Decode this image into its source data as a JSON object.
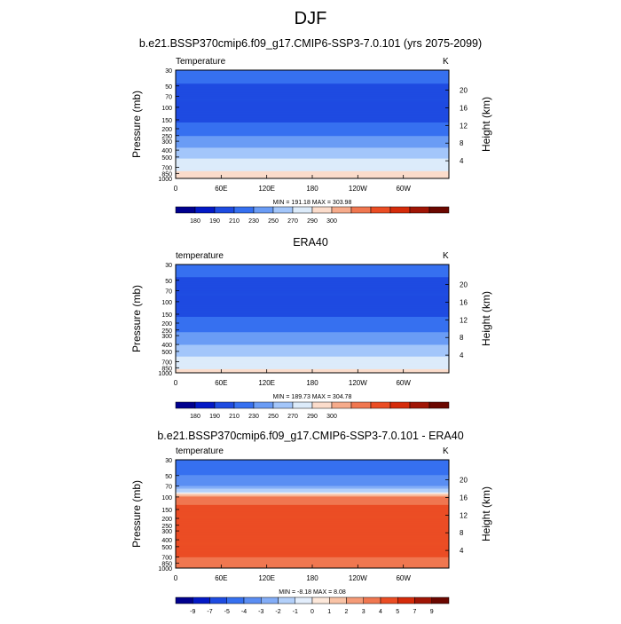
{
  "main_title": "DJF",
  "chart_data": [
    {
      "type": "heatmap",
      "title": "b.e21.BSSP370cmip6.f09_g17.CMIP6-SSP3-7.0.101 (yrs 2075-2099)",
      "field": "Temperature",
      "units": "K",
      "xlabel": "",
      "ylabel": "Pressure (mb)",
      "y2label": "Height (km)",
      "x_ticks": [
        "0",
        "60E",
        "120E",
        "180",
        "120W",
        "60W"
      ],
      "y_ticks": [
        30,
        50,
        70,
        100,
        150,
        200,
        250,
        300,
        400,
        500,
        700,
        850,
        1000
      ],
      "y2_ticks": [
        4,
        8,
        12,
        16,
        20
      ],
      "ylim": [
        1000,
        30
      ],
      "stats": "MIN = 191.18  MAX = 303.98",
      "levels": [
        180,
        190,
        210,
        230,
        250,
        270,
        290,
        300
      ],
      "colorbar_labels": [
        "180",
        "190",
        "210",
        "230",
        "250",
        "270",
        "290",
        "300"
      ],
      "profile": [
        {
          "p": 30,
          "v": 217
        },
        {
          "p": 50,
          "v": 209
        },
        {
          "p": 70,
          "v": 203
        },
        {
          "p": 100,
          "v": 200
        },
        {
          "p": 150,
          "v": 207
        },
        {
          "p": 200,
          "v": 218
        },
        {
          "p": 250,
          "v": 229
        },
        {
          "p": 300,
          "v": 239
        },
        {
          "p": 400,
          "v": 255
        },
        {
          "p": 500,
          "v": 267
        },
        {
          "p": 700,
          "v": 283
        },
        {
          "p": 850,
          "v": 293
        },
        {
          "p": 1000,
          "v": 300
        }
      ]
    },
    {
      "type": "heatmap",
      "title": "ERA40",
      "field": "temperature",
      "units": "K",
      "xlabel": "",
      "ylabel": "Pressure (mb)",
      "y2label": "Height (km)",
      "x_ticks": [
        "0",
        "60E",
        "120E",
        "180",
        "120W",
        "60W"
      ],
      "y_ticks": [
        30,
        50,
        70,
        100,
        150,
        200,
        250,
        300,
        400,
        500,
        700,
        850,
        1000
      ],
      "y2_ticks": [
        4,
        8,
        12,
        16,
        20
      ],
      "ylim": [
        1000,
        30
      ],
      "stats": "MIN = 189.73  MAX = 304.78",
      "levels": [
        180,
        190,
        210,
        230,
        250,
        270,
        290,
        300
      ],
      "colorbar_labels": [
        "180",
        "190",
        "210",
        "230",
        "250",
        "270",
        "290",
        "300"
      ],
      "profile": [
        {
          "p": 30,
          "v": 214
        },
        {
          "p": 50,
          "v": 209
        },
        {
          "p": 70,
          "v": 205
        },
        {
          "p": 100,
          "v": 203
        },
        {
          "p": 150,
          "v": 208
        },
        {
          "p": 200,
          "v": 216
        },
        {
          "p": 250,
          "v": 226
        },
        {
          "p": 300,
          "v": 235
        },
        {
          "p": 400,
          "v": 250
        },
        {
          "p": 500,
          "v": 262
        },
        {
          "p": 700,
          "v": 278
        },
        {
          "p": 850,
          "v": 288
        },
        {
          "p": 1000,
          "v": 294
        }
      ]
    },
    {
      "type": "heatmap",
      "title": "b.e21.BSSP370cmip6.f09_g17.CMIP6-SSP3-7.0.101 - ERA40",
      "field": "temperature",
      "units": "K",
      "xlabel": "",
      "ylabel": "Pressure (mb)",
      "y2label": "Height (km)",
      "x_ticks": [
        "0",
        "60E",
        "120E",
        "180",
        "120W",
        "60W"
      ],
      "y_ticks": [
        30,
        50,
        70,
        100,
        150,
        200,
        250,
        300,
        400,
        500,
        700,
        850,
        1000
      ],
      "y2_ticks": [
        4,
        8,
        12,
        16,
        20
      ],
      "ylim": [
        1000,
        30
      ],
      "stats": "MIN = -8.18  MAX =  8.08",
      "levels": [
        -9,
        -7,
        -5,
        -4,
        -3,
        -2,
        -1,
        0,
        1,
        2,
        3,
        4,
        5,
        7,
        9
      ],
      "colorbar_labels": [
        "-9",
        "-7",
        "-5",
        "-4",
        "-3",
        "-2",
        "-1",
        "0",
        "1",
        "2",
        "3",
        "4",
        "5",
        "7",
        "9"
      ],
      "profile": [
        {
          "p": 30,
          "v": -5
        },
        {
          "p": 50,
          "v": -4
        },
        {
          "p": 70,
          "v": -3
        },
        {
          "p": 85,
          "v": -1
        },
        {
          "p": 100,
          "v": 3
        },
        {
          "p": 150,
          "v": 4.5
        },
        {
          "p": 300,
          "v": 5
        },
        {
          "p": 500,
          "v": 4.5
        },
        {
          "p": 700,
          "v": 4
        },
        {
          "p": 850,
          "v": 3
        },
        {
          "p": 1000,
          "v": 4
        }
      ]
    }
  ],
  "colors": {
    "absolute": [
      "#00008e",
      "#0319c6",
      "#1e4be1",
      "#3670f0",
      "#6a9cf5",
      "#a3c6fa",
      "#dcebfa",
      "#fbdccb",
      "#f6ab8b",
      "#f07750",
      "#eb4d24",
      "#d52b0a",
      "#a01505",
      "#6b0700"
    ],
    "difference": [
      "#00008e",
      "#0319c6",
      "#1e4be1",
      "#3670f0",
      "#5b8ef3",
      "#83adf7",
      "#b3d0fa",
      "#e3eefc",
      "#fde8da",
      "#f9c3a6",
      "#f59b77",
      "#f07750",
      "#eb4d24",
      "#d52b0a",
      "#a01505",
      "#6b0700"
    ]
  }
}
